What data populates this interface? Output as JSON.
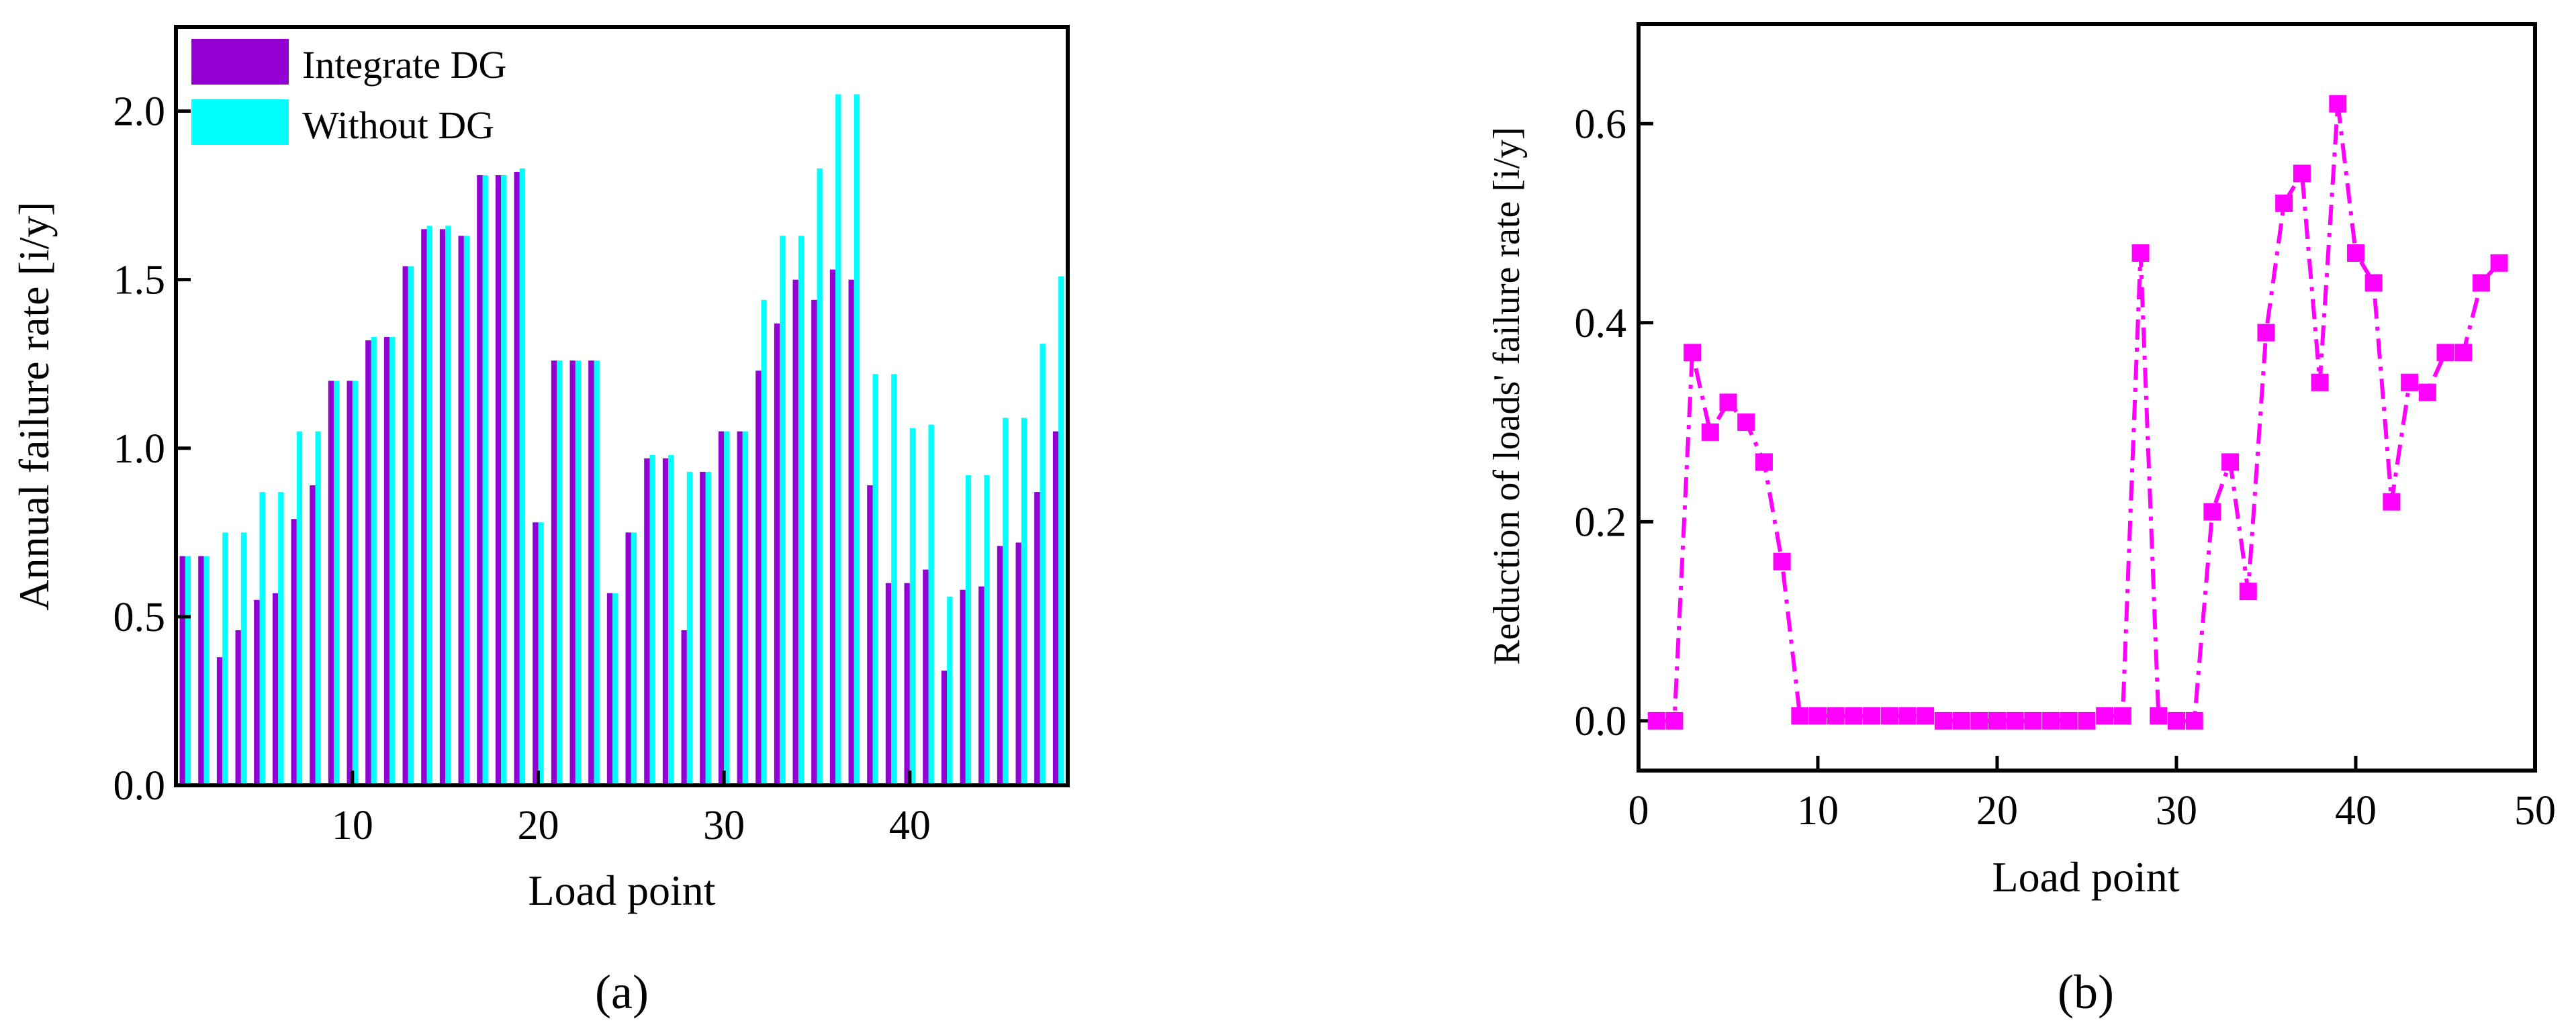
{
  "chart_data": [
    {
      "type": "bar",
      "panel_label": "(a)",
      "xlabel": "Load point",
      "ylabel": "Annual failure rate [i/y]",
      "ylim": [
        0,
        2.25
      ],
      "yticks": [
        0.0,
        0.5,
        1.0,
        1.5,
        2.0
      ],
      "ytick_labels": [
        "0.0",
        "0.5",
        "1.0",
        "1.5",
        "2.0"
      ],
      "xlim": [
        0.5,
        48.5
      ],
      "xticks": [
        10,
        20,
        30,
        40
      ],
      "xtick_labels": [
        "10",
        "20",
        "30",
        "40"
      ],
      "legend_position": "top-left",
      "categories": [
        1,
        2,
        3,
        4,
        5,
        6,
        7,
        8,
        9,
        10,
        11,
        12,
        13,
        14,
        15,
        16,
        17,
        18,
        19,
        20,
        21,
        22,
        23,
        24,
        25,
        26,
        27,
        28,
        29,
        30,
        31,
        32,
        33,
        34,
        35,
        36,
        37,
        38,
        39,
        40,
        41,
        42,
        43,
        44,
        45,
        46,
        47,
        48
      ],
      "series": [
        {
          "name": "Integrate DG",
          "color": "#9400D3",
          "values": [
            0.68,
            0.68,
            0.38,
            0.46,
            0.55,
            0.57,
            0.79,
            0.89,
            1.2,
            1.2,
            1.32,
            1.33,
            1.54,
            1.65,
            1.65,
            1.63,
            1.81,
            1.81,
            1.82,
            0.78,
            1.26,
            1.26,
            1.26,
            0.57,
            0.75,
            0.97,
            0.97,
            0.46,
            0.93,
            1.05,
            1.05,
            1.23,
            1.37,
            1.5,
            1.44,
            1.53,
            1.5,
            0.89,
            0.6,
            0.6,
            0.64,
            0.34,
            0.58,
            0.59,
            0.71,
            0.72,
            0.87,
            1.05
          ]
        },
        {
          "name": "Without  DG",
          "color": "#00FFFF",
          "values": [
            0.68,
            0.68,
            0.75,
            0.75,
            0.87,
            0.87,
            1.05,
            1.05,
            1.2,
            1.2,
            1.33,
            1.33,
            1.54,
            1.66,
            1.66,
            1.63,
            1.81,
            1.81,
            1.83,
            0.78,
            1.26,
            1.26,
            1.26,
            0.57,
            0.75,
            0.98,
            0.98,
            0.93,
            0.93,
            1.05,
            1.05,
            1.44,
            1.63,
            1.63,
            1.83,
            2.05,
            2.05,
            1.22,
            1.22,
            1.06,
            1.07,
            0.56,
            0.92,
            0.92,
            1.09,
            1.09,
            1.31,
            1.51
          ]
        }
      ]
    },
    {
      "type": "line",
      "panel_label": "(b)",
      "xlabel": "Load point",
      "ylabel": "Reduction of loads' failure rate [i/y]",
      "xlim": [
        0,
        50
      ],
      "ylim": [
        -0.05,
        0.7
      ],
      "xticks": [
        0,
        10,
        20,
        30,
        40,
        50
      ],
      "xtick_labels": [
        "0",
        "10",
        "20",
        "30",
        "40",
        "50"
      ],
      "yticks": [
        0.0,
        0.2,
        0.4,
        0.6
      ],
      "ytick_labels": [
        "0.0",
        "0.2",
        "0.4",
        "0.6"
      ],
      "series": [
        {
          "color": "#FF00FF",
          "marker": "square",
          "line_style": "dash-dot",
          "x": [
            1,
            2,
            3,
            4,
            5,
            6,
            7,
            8,
            9,
            10,
            11,
            12,
            13,
            14,
            15,
            16,
            17,
            18,
            19,
            20,
            21,
            22,
            23,
            24,
            25,
            26,
            27,
            28,
            29,
            30,
            31,
            32,
            33,
            34,
            35,
            36,
            37,
            38,
            39,
            40,
            41,
            42,
            43,
            44,
            45,
            46,
            47,
            48
          ],
          "y": [
            0.0,
            0.0,
            0.37,
            0.29,
            0.32,
            0.3,
            0.26,
            0.16,
            0.005,
            0.005,
            0.005,
            0.005,
            0.005,
            0.005,
            0.005,
            0.005,
            0.0,
            0.0,
            0.0,
            0.0,
            0.0,
            0.0,
            0.0,
            0.0,
            0.0,
            0.005,
            0.005,
            0.47,
            0.005,
            0.0,
            0.0,
            0.21,
            0.26,
            0.13,
            0.39,
            0.52,
            0.55,
            0.34,
            0.62,
            0.47,
            0.44,
            0.22,
            0.34,
            0.33,
            0.37,
            0.37,
            0.44,
            0.46
          ]
        }
      ]
    }
  ]
}
